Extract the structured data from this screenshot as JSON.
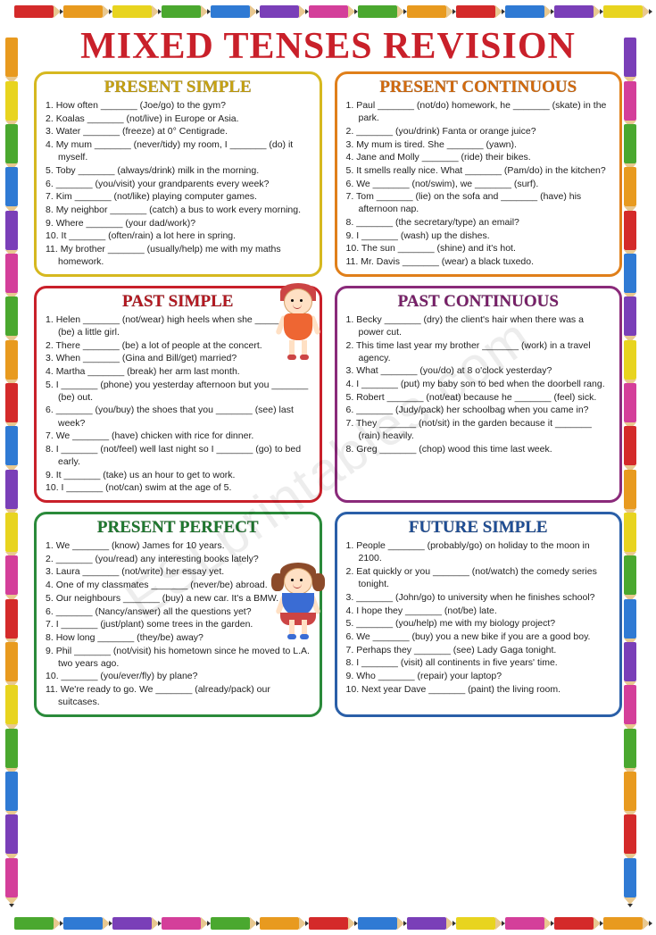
{
  "title": "MIXED TENSES REVISION",
  "title_color": "#c9202a",
  "watermark": "ESLprintables.com",
  "pencil_colors": [
    "#d42a2a",
    "#e89a1f",
    "#e8d41f",
    "#4aa82f",
    "#2f7ad4",
    "#7a3fb8",
    "#d43f9a",
    "#4aa82f",
    "#e89a1f",
    "#d42a2a",
    "#2f7ad4",
    "#7a3fb8",
    "#e8d41f",
    "#d43f9a"
  ],
  "sections": [
    {
      "heading": "PRESENT SIMPLE",
      "border_color": "#d6b81f",
      "title_color": "#c9a30f",
      "items": [
        "How often _______ (Joe/go) to the gym?",
        "Koalas _______ (not/live) in Europe or Asia.",
        "Water _______ (freeze) at 0° Centigrade.",
        "My mum _______ (never/tidy) my room, I _______ (do) it myself.",
        "Toby _______ (always/drink) milk in the morning.",
        "_______ (you/visit) your grandparents every week?",
        "Kim _______ (not/like) playing computer games.",
        "My neighbor _______ (catch) a bus to work every morning.",
        "Where _______ (your dad/work)?",
        "It _______ (often/rain) a lot here in spring.",
        "My brother _______ (usually/help) me with my maths homework."
      ]
    },
    {
      "heading": "PRESENT CONTINUOUS",
      "border_color": "#e07f1a",
      "title_color": "#d66a0a",
      "items": [
        "Paul _______ (not/do) homework, he _______ (skate) in the park.",
        "_______ (you/drink) Fanta or orange juice?",
        "My mum is tired. She _______ (yawn).",
        "Jane and Molly _______ (ride) their bikes.",
        "It smells really nice. What _______ (Pam/do) in the kitchen?",
        "We _______ (not/swim), we _______ (surf).",
        "Tom _______ (lie) on the sofa and _______ (have) his afternoon nap.",
        "_______ (the secretary/type) an email?",
        "I _______ (wash) up the dishes.",
        "The sun _______ (shine) and it's hot.",
        "Mr. Davis _______ (wear) a black tuxedo."
      ]
    },
    {
      "heading": "PAST SIMPLE",
      "border_color": "#c9202a",
      "title_color": "#b81820",
      "items": [
        "Helen _______ (not/wear) high heels when she _______ (be) a little girl.",
        "There _______ (be) a lot of people at the concert.",
        "When _______ (Gina and Bill/get) married?",
        "Martha _______ (break) her arm last month.",
        "I _______ (phone) you yesterday afternoon but you _______ (be) out.",
        "_______ (you/buy) the shoes that you _______ (see) last week?",
        "We _______ (have) chicken with rice for dinner.",
        "I _______ (not/feel) well last night so I _______ (go) to bed early.",
        "It _______ (take) us an hour to get to work.",
        "I _______ (not/can) swim at the age of 5."
      ]
    },
    {
      "heading": "PAST CONTINUOUS",
      "border_color": "#8a2a7a",
      "title_color": "#7a1f6a",
      "items": [
        "Becky _______ (dry) the client's hair when there was a power cut.",
        "This time last year my brother _______ (work) in a travel agency.",
        "What _______ (you/do) at 8 o'clock yesterday?",
        "I _______ (put) my baby son to bed when the doorbell rang.",
        "Robert _______ (not/eat) because he _______ (feel) sick.",
        "_______ (Judy/pack) her schoolbag when you came in?",
        "They _______ (not/sit) in the garden because it _______ (rain) heavily.",
        "Greg _______ (chop) wood this time last week."
      ]
    },
    {
      "heading": "PRESENT PERFECT",
      "border_color": "#2a8a3a",
      "title_color": "#1f7a2f",
      "items": [
        "We _______ (know) James for 10 years.",
        "_______ (you/read) any interesting books lately?",
        "Laura _______ (not/write) her essay yet.",
        "One of my classmates _______ (never/be) abroad.",
        "Our neighbours _______ (buy) a new car. It's a BMW.",
        "_______ (Nancy/answer) all the questions yet?",
        "I _______ (just/plant) some trees in the garden.",
        "How long _______ (they/be) away?",
        "Phil _______ (not/visit) his hometown since he moved to L.A. two years ago.",
        "_______ (you/ever/fly) by plane?",
        "We're ready to go. We _______ (already/pack) our suitcases."
      ]
    },
    {
      "heading": "FUTURE SIMPLE",
      "border_color": "#2a5fa8",
      "title_color": "#1f4f98",
      "items": [
        "People _______ (probably/go) on holiday to the moon in 2100.",
        "Eat quickly or you _______ (not/watch) the comedy series tonight.",
        "_______ (John/go) to university when he finishes school?",
        "I hope they _______ (not/be) late.",
        "_______ (you/help) me with my biology project?",
        "We _______ (buy) you a new bike if you are a good boy.",
        "Perhaps they _______ (see) Lady Gaga tonight.",
        "I _______ (visit) all continents in five years' time.",
        "Who _______ (repair) your laptop?",
        "Next year Dave _______ (paint) the living room."
      ]
    }
  ]
}
